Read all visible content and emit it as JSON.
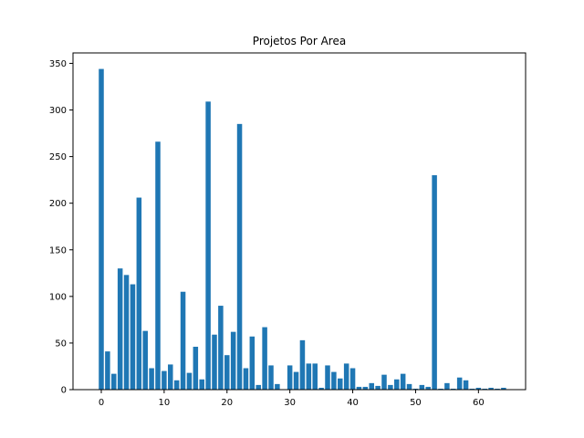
{
  "chart_data": {
    "type": "bar",
    "title": "Projetos Por Area",
    "xlabel": "",
    "ylabel": "",
    "color": "#1f77b4",
    "x": [
      0,
      1,
      2,
      3,
      4,
      5,
      6,
      7,
      8,
      9,
      10,
      11,
      12,
      13,
      14,
      15,
      16,
      17,
      18,
      19,
      20,
      21,
      22,
      23,
      24,
      25,
      26,
      27,
      28,
      29,
      30,
      31,
      32,
      33,
      34,
      35,
      36,
      37,
      38,
      39,
      40,
      41,
      42,
      43,
      44,
      45,
      46,
      47,
      48,
      49,
      50,
      51,
      52,
      53,
      54,
      55,
      56,
      57,
      58,
      59,
      60,
      61,
      62,
      63,
      64
    ],
    "values": [
      344,
      41,
      17,
      130,
      123,
      113,
      206,
      63,
      23,
      266,
      20,
      27,
      10,
      105,
      18,
      46,
      11,
      309,
      59,
      90,
      37,
      62,
      285,
      23,
      57,
      5,
      67,
      26,
      6,
      0,
      26,
      19,
      53,
      28,
      28,
      2,
      26,
      19,
      12,
      28,
      23,
      3,
      3,
      7,
      4,
      16,
      5,
      11,
      17,
      6,
      1,
      5,
      3,
      230,
      1,
      7,
      1,
      13,
      10,
      1,
      2,
      1,
      2,
      1,
      2
    ],
    "xlim": [
      -4.5,
      67.5
    ],
    "ylim": [
      0,
      361.2
    ],
    "xticks": [
      0,
      10,
      20,
      30,
      40,
      50,
      60
    ],
    "yticks": [
      0,
      50,
      100,
      150,
      200,
      250,
      300,
      350
    ],
    "grid": false
  }
}
